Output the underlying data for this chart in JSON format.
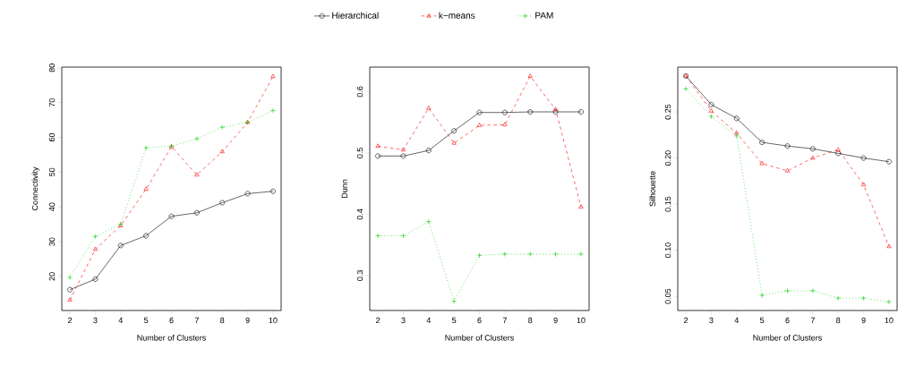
{
  "chart_data": [
    {
      "type": "line",
      "xlabel": "Number of Clusters",
      "ylabel": "Connectivity",
      "x": [
        2,
        3,
        4,
        5,
        6,
        7,
        8,
        9,
        10
      ],
      "xlim": [
        1.68,
        10.32
      ],
      "xticks": [
        2,
        3,
        4,
        5,
        6,
        7,
        8,
        9,
        10
      ],
      "ylim": [
        10.2,
        80.2
      ],
      "yticks": [
        20,
        30,
        40,
        50,
        60,
        70,
        80
      ],
      "grid": false,
      "legend": "top",
      "series": [
        {
          "name": "Hierarchical",
          "color": "#000000",
          "marker": "circle",
          "line_style": "solid",
          "values": [
            16.2,
            19.2,
            28.9,
            31.7,
            37.3,
            38.3,
            41.2,
            43.8,
            44.5
          ]
        },
        {
          "name": "k−means",
          "color": "#ff0000",
          "marker": "triangle",
          "line_style": "dashed",
          "values": [
            13.2,
            27.8,
            34.6,
            45.1,
            57.3,
            49.2,
            55.9,
            64.3,
            77.5
          ]
        },
        {
          "name": "PAM",
          "color": "#00cd00",
          "marker": "cross",
          "line_style": "dotted",
          "values": [
            19.7,
            31.5,
            35.0,
            57.0,
            57.5,
            59.6,
            62.9,
            64.3,
            67.7
          ]
        }
      ]
    },
    {
      "type": "line",
      "xlabel": "Number of Clusters",
      "ylabel": "Dunn",
      "x": [
        2,
        3,
        4,
        5,
        6,
        7,
        8,
        9,
        10
      ],
      "xlim": [
        1.68,
        10.32
      ],
      "xticks": [
        2,
        3,
        4,
        5,
        6,
        7,
        8,
        9,
        10
      ],
      "ylim": [
        0.243,
        0.64
      ],
      "yticks": [
        0.3,
        0.4,
        0.5,
        0.6
      ],
      "grid": false,
      "series": [
        {
          "color": "#000000",
          "marker": "circle",
          "line_style": "solid",
          "values": [
            0.495,
            0.495,
            0.504,
            0.536,
            0.566,
            0.566,
            0.567,
            0.567,
            0.567
          ]
        },
        {
          "color": "#ff0000",
          "marker": "triangle",
          "line_style": "dashed",
          "values": [
            0.511,
            0.505,
            0.573,
            0.516,
            0.545,
            0.546,
            0.625,
            0.571,
            0.412
          ]
        },
        {
          "color": "#00cd00",
          "marker": "cross",
          "line_style": "dotted",
          "values": [
            0.365,
            0.365,
            0.388,
            0.258,
            0.333,
            0.335,
            0.335,
            0.335,
            0.335
          ]
        }
      ]
    },
    {
      "type": "line",
      "xlabel": "Number of Clusters",
      "ylabel": "Silhouette",
      "x": [
        2,
        3,
        4,
        5,
        6,
        7,
        8,
        9,
        10
      ],
      "xlim": [
        1.68,
        10.32
      ],
      "xticks": [
        2,
        3,
        4,
        5,
        6,
        7,
        8,
        9,
        10
      ],
      "ylim": [
        0.0346,
        0.2986
      ],
      "yticks": [
        0.05,
        {
          "value": 0.1,
          "label": "0.10"
        },
        0.15,
        {
          "value": 0.2,
          "label": "0.20"
        },
        0.25
      ],
      "grid": false,
      "series": [
        {
          "color": "#000000",
          "marker": "circle",
          "line_style": "solid",
          "values": [
            0.289,
            0.258,
            0.243,
            0.217,
            0.213,
            0.21,
            0.205,
            0.2,
            0.196
          ]
        },
        {
          "color": "#ff0000",
          "marker": "triangle",
          "line_style": "dashed",
          "values": [
            0.289,
            0.251,
            0.227,
            0.194,
            0.186,
            0.2,
            0.209,
            0.171,
            0.104
          ]
        },
        {
          "color": "#00cd00",
          "marker": "cross",
          "line_style": "dotted",
          "values": [
            0.275,
            0.245,
            0.224,
            0.051,
            0.056,
            0.056,
            0.048,
            0.048,
            0.044
          ]
        }
      ]
    }
  ]
}
